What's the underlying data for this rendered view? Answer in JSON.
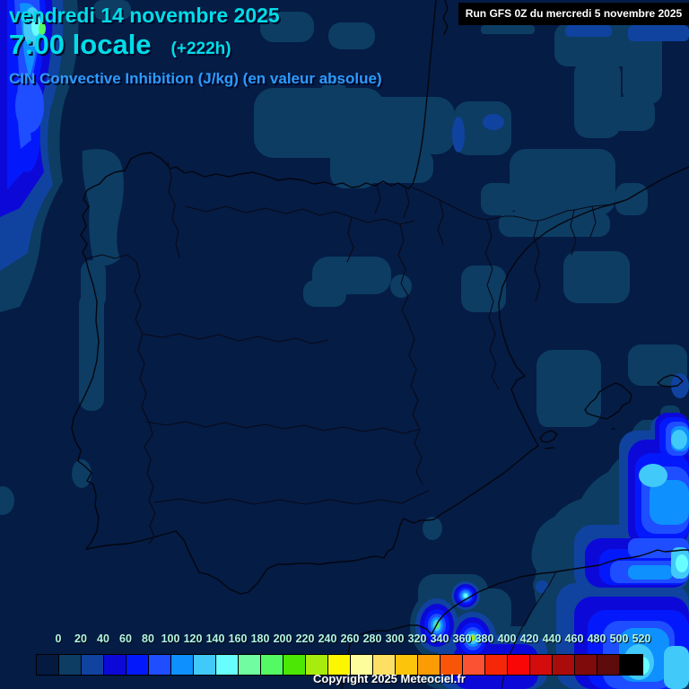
{
  "header": {
    "date_line": "vendredi 14 novembre 2025",
    "time_line": "7:00 locale",
    "forecast_offset": "(+222h)",
    "subtitle": "CIN Convective Inhibition (J/kg) (en valeur absolue)",
    "run_info": "Run GFS 0Z du mercredi 5 novembre 2025"
  },
  "footer": {
    "copyright": "Copyright 2025 Meteociel.fr"
  },
  "colors": {
    "background": "#051c45",
    "title_cyan": "#00dde8",
    "subtitle_blue": "#2d9bfe",
    "run_box_bg": "#000000",
    "run_box_text": "#ffffff",
    "legend_tick_text": "#b2f6e2",
    "copyright_text": "#ffffff"
  },
  "legend": {
    "parameter": "CIN (J/kg), valeur absolue",
    "values": [
      "0",
      "20",
      "40",
      "60",
      "80",
      "100",
      "120",
      "140",
      "160",
      "180",
      "200",
      "220",
      "240",
      "260",
      "280",
      "300",
      "320",
      "340",
      "360",
      "380",
      "400",
      "420",
      "440",
      "460",
      "480",
      "500",
      "520"
    ],
    "colors": [
      "#041a40",
      "#0d3d63",
      "#1043a0",
      "#0c09d8",
      "#0419fb",
      "#1e4eff",
      "#0e90fe",
      "#41c9f9",
      "#68fdff",
      "#71fca2",
      "#54fa64",
      "#4de705",
      "#a8ec0e",
      "#fdf601",
      "#fdfd9c",
      "#fcdf63",
      "#fcc50b",
      "#fb9c04",
      "#f85508",
      "#fb5233",
      "#f62708",
      "#f90707",
      "#d30c0c",
      "#aa0c0c",
      "#7f0b0b",
      "#5e0b0b",
      "#000000"
    ]
  },
  "map": {
    "region": "Peninsule Iberique / Espagne",
    "field_level_names": [
      "0-20",
      "20-40",
      "40-60",
      "60-80",
      "80-100",
      "100-120",
      "120-140",
      "140-160",
      "green-core",
      "yellow-green-core"
    ]
  }
}
